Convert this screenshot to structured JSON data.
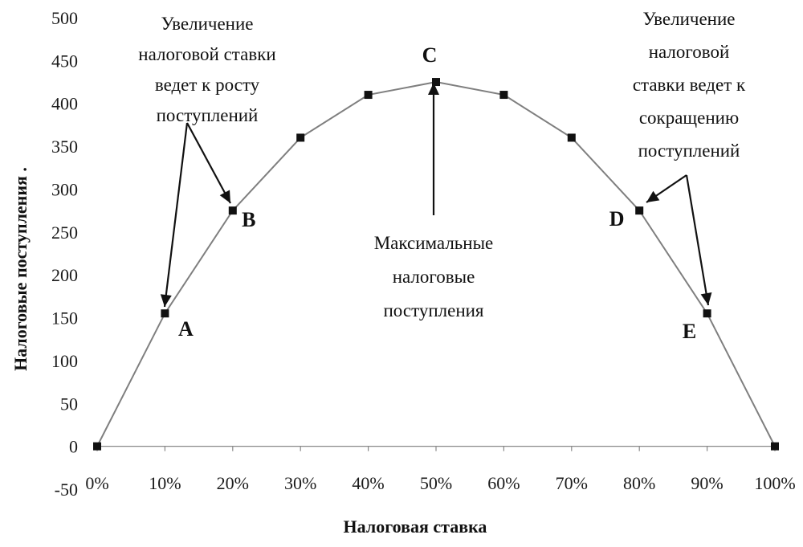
{
  "chart_data": {
    "type": "line",
    "xlabel": "Налоговая ставка",
    "ylabel": "Налоговые поступления .",
    "x_ticks": [
      "0%",
      "10%",
      "20%",
      "30%",
      "40%",
      "50%",
      "60%",
      "70%",
      "80%",
      "90%",
      "100%"
    ],
    "y_ticks": [
      "-50",
      "0",
      "50",
      "100",
      "150",
      "200",
      "250",
      "300",
      "350",
      "400",
      "450",
      "500"
    ],
    "ylim": [
      -50,
      500
    ],
    "xlim": [
      0,
      100
    ],
    "grid": false,
    "series": [
      {
        "x": [
          0,
          10,
          20,
          30,
          40,
          50,
          60,
          70,
          80,
          90,
          100
        ],
        "values": [
          0,
          155,
          275,
          360,
          410,
          425,
          410,
          360,
          275,
          155,
          0
        ],
        "color": "#7f7f7f",
        "marker_color": "#111111"
      }
    ],
    "point_labels": [
      {
        "text": "A",
        "x": 10,
        "y": 155
      },
      {
        "text": "B",
        "x": 20,
        "y": 275
      },
      {
        "text": "C",
        "x": 50,
        "y": 425
      },
      {
        "text": "D",
        "x": 80,
        "y": 275
      },
      {
        "text": "E",
        "x": 90,
        "y": 155
      }
    ],
    "annotations": [
      {
        "id": "left",
        "lines": [
          "Увеличение",
          "налоговой ставки",
          "ведет к росту",
          "поступлений"
        ]
      },
      {
        "id": "center",
        "lines": [
          "Максимальные",
          "налоговые",
          "поступления"
        ]
      },
      {
        "id": "right",
        "lines": [
          "Увеличение",
          "налоговой",
          "ставки ведет к",
          "сокращению",
          "поступлений"
        ]
      }
    ]
  }
}
